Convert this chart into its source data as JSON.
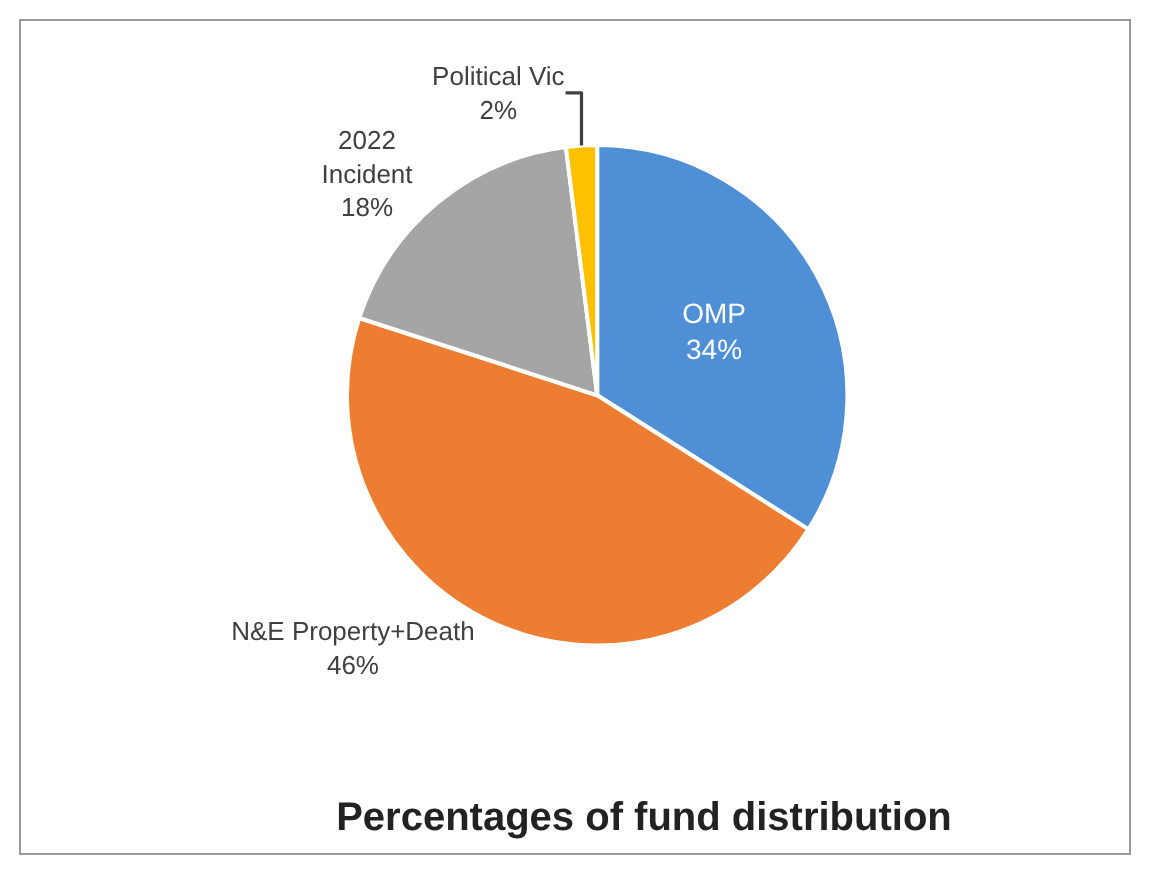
{
  "chart_data": {
    "type": "pie",
    "title": "Percentages of fund distribution",
    "categories": [
      "OMP",
      "N&E Property+Death",
      "2022\nIncident",
      "Political Vic"
    ],
    "values": [
      34,
      46,
      18,
      2
    ],
    "value_labels": [
      "34%",
      "46%",
      "18%",
      "2%"
    ],
    "colors": [
      "#4e8fd6",
      "#ed7d31",
      "#a5a5a5",
      "#ffc000"
    ],
    "legend": false
  }
}
